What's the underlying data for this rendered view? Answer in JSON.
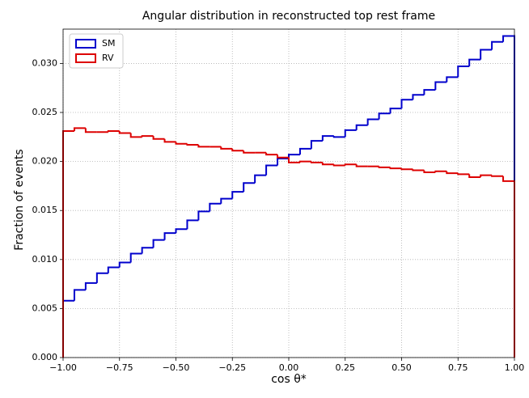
{
  "chart_data": {
    "type": "histogram",
    "title": "Angular distribution in reconstructed top rest frame",
    "xlabel": "cos θ*",
    "ylabel": "Fraction of events",
    "bins": [
      -1.0,
      -0.95,
      -0.9,
      -0.85,
      -0.8,
      -0.75,
      -0.7,
      -0.65,
      -0.6,
      -0.55,
      -0.5,
      -0.45,
      -0.4,
      -0.35,
      -0.3,
      -0.25,
      -0.2,
      -0.15,
      -0.1,
      -0.05,
      0.0,
      0.05,
      0.1,
      0.15,
      0.2,
      0.25,
      0.3,
      0.35,
      0.4,
      0.45,
      0.5,
      0.55,
      0.6,
      0.65,
      0.7,
      0.75,
      0.8,
      0.85,
      0.9,
      0.95,
      1.0
    ],
    "series": [
      {
        "name": "SM",
        "color": "#0000cc",
        "values": [
          0.0058,
          0.0069,
          0.0076,
          0.0086,
          0.0092,
          0.0097,
          0.0106,
          0.0112,
          0.012,
          0.0127,
          0.0131,
          0.014,
          0.0149,
          0.0157,
          0.0162,
          0.0169,
          0.0178,
          0.0186,
          0.0196,
          0.0203,
          0.0207,
          0.0213,
          0.0221,
          0.0226,
          0.0225,
          0.0232,
          0.0237,
          0.0243,
          0.0249,
          0.0254,
          0.0263,
          0.0268,
          0.0273,
          0.0281,
          0.0286,
          0.0297,
          0.0304,
          0.0314,
          0.0322,
          0.0328
        ]
      },
      {
        "name": "RV",
        "color": "#dd0000",
        "values": [
          0.0231,
          0.0234,
          0.023,
          0.023,
          0.0231,
          0.0229,
          0.0225,
          0.0226,
          0.0223,
          0.022,
          0.0218,
          0.0217,
          0.0215,
          0.0215,
          0.0213,
          0.0211,
          0.0209,
          0.0209,
          0.0207,
          0.0204,
          0.0199,
          0.02,
          0.0199,
          0.0197,
          0.0196,
          0.0197,
          0.0195,
          0.0195,
          0.0194,
          0.0193,
          0.0192,
          0.0191,
          0.0189,
          0.019,
          0.0188,
          0.0187,
          0.0184,
          0.0186,
          0.0185,
          0.018
        ]
      }
    ],
    "xlim": [
      -1.0,
      1.0
    ],
    "ylim": [
      0.0,
      0.0335
    ],
    "xticks": [
      {
        "value": -1.0,
        "label": "−1.00"
      },
      {
        "value": -0.75,
        "label": "−0.75"
      },
      {
        "value": -0.5,
        "label": "−0.50"
      },
      {
        "value": -0.25,
        "label": "−0.25"
      },
      {
        "value": 0.0,
        "label": "0.00"
      },
      {
        "value": 0.25,
        "label": "0.25"
      },
      {
        "value": 0.5,
        "label": "0.50"
      },
      {
        "value": 0.75,
        "label": "0.75"
      },
      {
        "value": 1.0,
        "label": "1.00"
      }
    ],
    "yticks": [
      {
        "value": 0.0,
        "label": "0.000"
      },
      {
        "value": 0.005,
        "label": "0.005"
      },
      {
        "value": 0.01,
        "label": "0.010"
      },
      {
        "value": 0.015,
        "label": "0.015"
      },
      {
        "value": 0.02,
        "label": "0.020"
      },
      {
        "value": 0.025,
        "label": "0.025"
      },
      {
        "value": 0.03,
        "label": "0.030"
      }
    ],
    "grid": true,
    "legend": "upper left"
  }
}
